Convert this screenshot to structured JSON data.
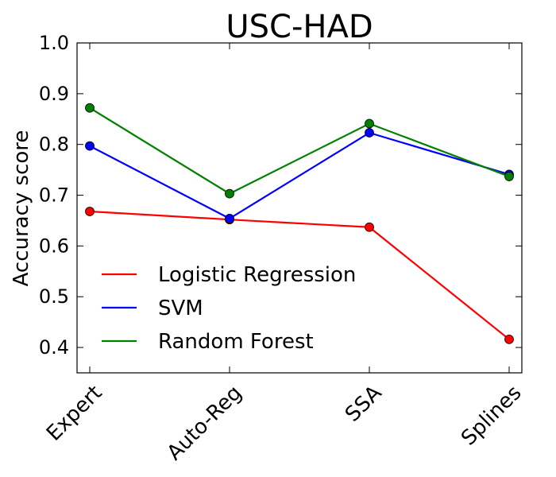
{
  "chart_data": {
    "type": "line",
    "title": "USC-HAD",
    "xlabel": "",
    "ylabel": "Accuracy score",
    "categories": [
      "Expert",
      "Auto-Reg",
      "SSA",
      "Splines"
    ],
    "ylim": [
      0.35,
      1.0
    ],
    "yticks": [
      "0.4",
      "0.5",
      "0.6",
      "0.7",
      "0.8",
      "0.9",
      "1.0"
    ],
    "grid": false,
    "legend_position": "lower-left",
    "series": [
      {
        "name": "Logistic Regression",
        "color": "#ff0000",
        "values": [
          0.668,
          0.652,
          0.637,
          0.416
        ]
      },
      {
        "name": "SVM",
        "color": "#0000ff",
        "values": [
          0.797,
          0.654,
          0.823,
          0.741
        ]
      },
      {
        "name": "Random Forest",
        "color": "#008000",
        "values": [
          0.872,
          0.703,
          0.841,
          0.737
        ]
      }
    ]
  }
}
